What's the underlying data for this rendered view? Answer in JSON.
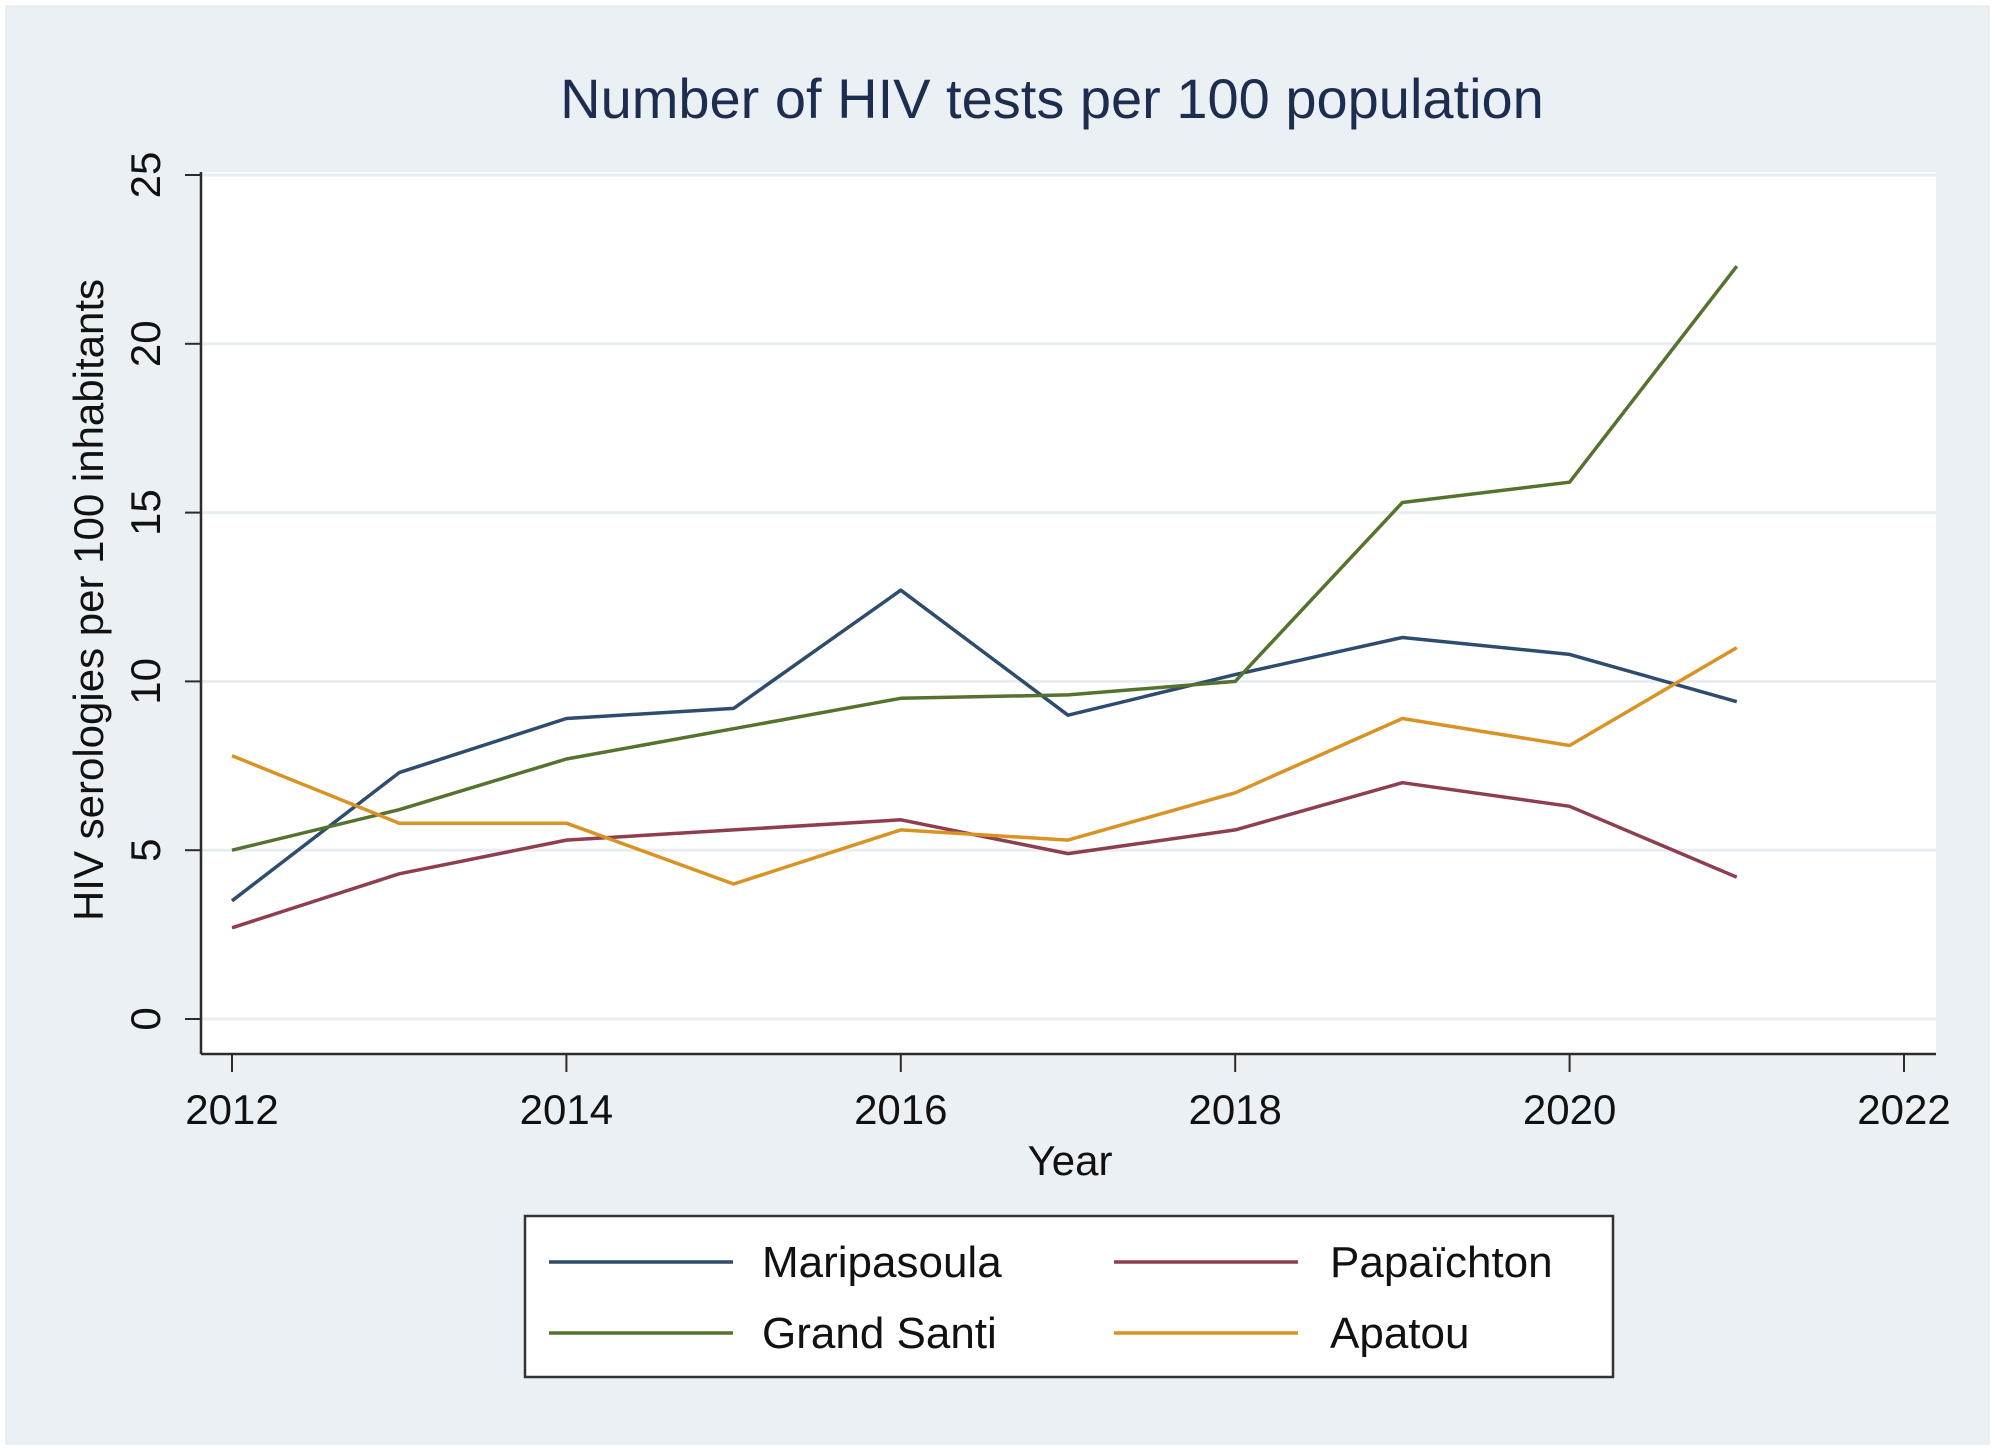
{
  "chart_data": {
    "type": "line",
    "title": "Number of HIV tests per 100 population",
    "xlabel": "Year",
    "ylabel": "HIV serologies per 100 inhabitants",
    "x": [
      2012,
      2013,
      2014,
      2015,
      2016,
      2017,
      2018,
      2019,
      2020,
      2021
    ],
    "xlim": [
      2012,
      2022
    ],
    "ylim": [
      0,
      25
    ],
    "xticks": [
      "2012",
      "2014",
      "2016",
      "2018",
      "2020",
      "2022"
    ],
    "yticks": [
      "0",
      "5",
      "10",
      "15",
      "20",
      "25"
    ],
    "grid": true,
    "legend_position": "bottom",
    "series": [
      {
        "name": "Maripasoula",
        "color": "#2e4c6d",
        "values": [
          3.5,
          7.3,
          8.9,
          9.2,
          12.7,
          9.0,
          10.2,
          11.3,
          10.8,
          9.4
        ]
      },
      {
        "name": "Papaïchton",
        "color": "#8e3f4f",
        "values": [
          2.7,
          4.3,
          5.3,
          5.6,
          5.9,
          4.9,
          5.6,
          7.0,
          6.3,
          4.2
        ]
      },
      {
        "name": "Grand Santi",
        "color": "#55722f",
        "values": [
          5.0,
          6.2,
          7.7,
          8.6,
          9.5,
          9.6,
          10.0,
          15.3,
          15.9,
          22.3
        ]
      },
      {
        "name": "Apatou",
        "color": "#d99325",
        "values": [
          7.8,
          5.8,
          5.8,
          4.0,
          5.6,
          5.3,
          6.7,
          8.9,
          8.1,
          11.0
        ]
      }
    ],
    "colors": {
      "outer_background": "#eaf0f3",
      "plot_background": "#ffffff",
      "grid": "#e8edf0",
      "axis": "#2b2b2b",
      "title": "#1c2d4f"
    }
  }
}
